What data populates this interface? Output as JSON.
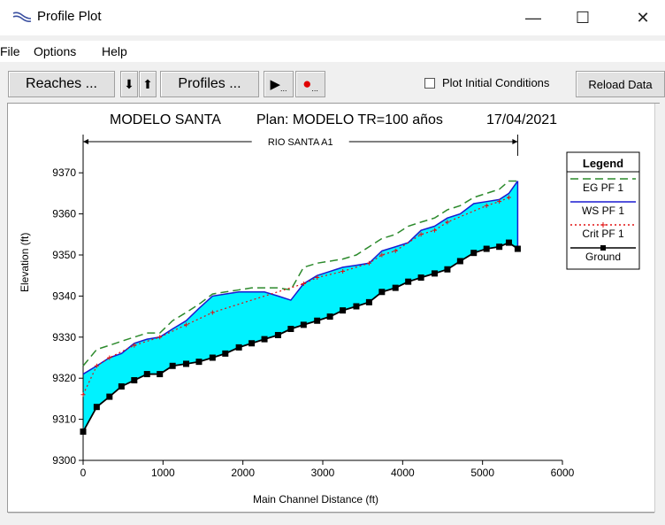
{
  "window": {
    "title": "Profile Plot",
    "minimize": "—",
    "maximize": "☐",
    "close": "✕"
  },
  "menu": [
    "File",
    "Options",
    "Help"
  ],
  "toolbar": {
    "reaches_label": "Reaches ...",
    "down_label": "⬇",
    "up_label": "⬆",
    "profiles_label": "Profiles ...",
    "play_label": "▶",
    "play_dots": "...",
    "record_label": "●",
    "record_dots": "...",
    "plot_initial_label": "Plot Initial Conditions",
    "plot_initial_checked": false,
    "reload_label": "Reload Data"
  },
  "colors": {
    "water_fill": "#00f2ff",
    "eg_line": "#2c8a2c",
    "ws_line": "#1a1ad0",
    "crit_line": "#e01010",
    "ground_line": "#000000"
  },
  "chart_data": {
    "type": "area",
    "title_left": "MODELO SANTA",
    "title_plan": "Plan: MODELO TR=100 años",
    "title_date": "17/04/2021",
    "reach_label": "RIO SANTA A1",
    "xlabel": "Main Channel Distance (ft)",
    "ylabel": "Elevation (ft)",
    "xlim": [
      0,
      6000
    ],
    "ylim": [
      9300,
      9375
    ],
    "xticks": [
      0,
      1000,
      2000,
      3000,
      4000,
      5000,
      6000
    ],
    "yticks": [
      9300,
      9310,
      9320,
      9330,
      9340,
      9350,
      9360,
      9370
    ],
    "legend_title": "Legend",
    "legend_position": "top-right",
    "reach_start": 0,
    "reach_end": 5440,
    "series": [
      {
        "name": "EG  PF 1",
        "style": "dashed",
        "x": [
          0,
          170,
          330,
          480,
          640,
          800,
          960,
          1120,
          1290,
          1450,
          1620,
          1780,
          1950,
          2110,
          2270,
          2440,
          2600,
          2760,
          2930,
          3090,
          3250,
          3420,
          3580,
          3740,
          3910,
          4070,
          4230,
          4400,
          4560,
          4720,
          4890,
          5050,
          5210,
          5330,
          5440
        ],
        "values": [
          9323,
          9327,
          9328,
          9329,
          9330,
          9331,
          9331,
          9334,
          9336,
          9338,
          9340.5,
          9341,
          9341.5,
          9342,
          9342,
          9342,
          9341.5,
          9347,
          9348,
          9348.5,
          9349,
          9350,
          9352,
          9354,
          9355,
          9357,
          9358,
          9359,
          9361,
          9362,
          9364,
          9365,
          9366,
          9368,
          9368
        ]
      },
      {
        "name": "WS  PF 1",
        "style": "solid",
        "x": [
          0,
          170,
          330,
          480,
          640,
          800,
          960,
          1120,
          1290,
          1450,
          1620,
          1780,
          1950,
          2110,
          2270,
          2440,
          2600,
          2760,
          2930,
          3090,
          3250,
          3420,
          3580,
          3740,
          3910,
          4070,
          4230,
          4400,
          4560,
          4720,
          4890,
          5050,
          5210,
          5330,
          5440
        ],
        "values": [
          9321,
          9323,
          9325,
          9326,
          9328.5,
          9329.5,
          9330,
          9332,
          9334,
          9337,
          9340,
          9340.5,
          9341,
          9341,
          9341,
          9340,
          9339,
          9343,
          9345,
          9346,
          9347,
          9347.5,
          9348,
          9351,
          9352,
          9353,
          9356,
          9357,
          9359,
          9360,
          9362.5,
          9363,
          9363.5,
          9365,
          9368
        ]
      },
      {
        "name": "Crit  PF 1",
        "style": "dotted-plus",
        "x": [
          0,
          170,
          330,
          640,
          960,
          1290,
          1620,
          2760,
          2930,
          3250,
          3580,
          3740,
          3910,
          4230,
          4400,
          4560,
          5050,
          5210,
          5330
        ],
        "values": [
          9316,
          9323,
          9325,
          9328,
          9330,
          9333,
          9336,
          9343,
          9344.5,
          9346,
          9348,
          9350,
          9351,
          9355,
          9356,
          9358,
          9362,
          9363,
          9364
        ]
      },
      {
        "name": "Ground",
        "style": "solid-square",
        "x": [
          0,
          170,
          330,
          480,
          640,
          800,
          960,
          1120,
          1290,
          1450,
          1620,
          1780,
          1950,
          2110,
          2270,
          2440,
          2600,
          2760,
          2930,
          3090,
          3250,
          3420,
          3580,
          3740,
          3910,
          4070,
          4230,
          4400,
          4560,
          4720,
          4890,
          5050,
          5210,
          5330,
          5440
        ],
        "values": [
          9307,
          9313,
          9315.5,
          9318,
          9319.5,
          9321,
          9321,
          9323,
          9323.5,
          9324,
          9325,
          9326,
          9327.5,
          9328.5,
          9329.5,
          9330.5,
          9332,
          9333,
          9334,
          9335,
          9336.5,
          9337.5,
          9338.5,
          9341,
          9342,
          9343.5,
          9344.5,
          9345.5,
          9346.5,
          9348.5,
          9350.5,
          9351.5,
          9352,
          9353,
          9351.5
        ]
      }
    ]
  }
}
